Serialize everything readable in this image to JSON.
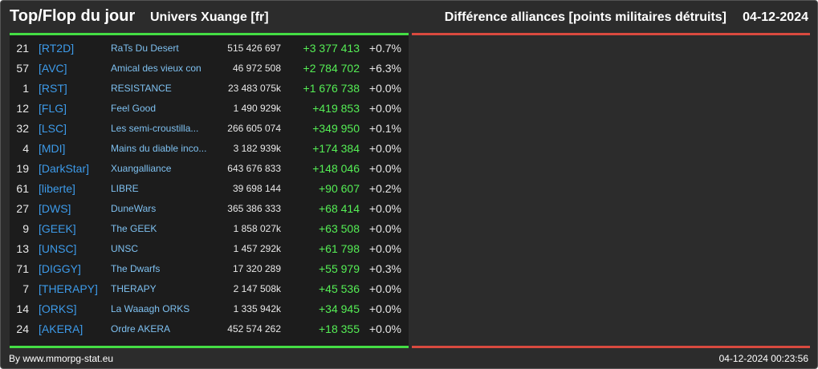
{
  "header": {
    "title": "Top/Flop du jour",
    "subtitle": "Univers Xuange [fr]",
    "right_title": "Différence alliances [points militaires détruits]",
    "date": "04-12-2024"
  },
  "colors": {
    "top_accent": "#44dd44",
    "flop_accent": "#d94a3f",
    "tag": "#3d9bea",
    "name": "#7ec0f0",
    "delta": "#55ee55",
    "panel_bg": "#1c1c1c",
    "frame_bg": "#2c2c2c"
  },
  "rows": [
    {
      "rank": "21",
      "tag": "[RT2D]",
      "name": "RaTs Du Desert",
      "points": "515 426 697",
      "delta": "+3 377 413",
      "pct": "+0.7%"
    },
    {
      "rank": "57",
      "tag": "[AVC]",
      "name": "Amical des vieux con",
      "points": "46 972 508",
      "delta": "+2 784 702",
      "pct": "+6.3%"
    },
    {
      "rank": "1",
      "tag": "[RST]",
      "name": "RESISTANCE",
      "points": "23 483 075k",
      "delta": "+1 676 738",
      "pct": "+0.0%"
    },
    {
      "rank": "12",
      "tag": "[FLG]",
      "name": "Feel Good",
      "points": "1 490 929k",
      "delta": "+419 853",
      "pct": "+0.0%"
    },
    {
      "rank": "32",
      "tag": "[LSC]",
      "name": "Les semi-croustilla...",
      "points": "266 605 074",
      "delta": "+349 950",
      "pct": "+0.1%"
    },
    {
      "rank": "4",
      "tag": "[MDI]",
      "name": "Mains du diable inco...",
      "points": "3 182 939k",
      "delta": "+174 384",
      "pct": "+0.0%"
    },
    {
      "rank": "19",
      "tag": "[DarkStar]",
      "name": "Xuangalliance",
      "points": "643 676 833",
      "delta": "+148 046",
      "pct": "+0.0%"
    },
    {
      "rank": "61",
      "tag": "[liberte]",
      "name": "LIBRE",
      "points": "39 698 144",
      "delta": "+90 607",
      "pct": "+0.2%"
    },
    {
      "rank": "27",
      "tag": "[DWS]",
      "name": "DuneWars",
      "points": "365 386 333",
      "delta": "+68 414",
      "pct": "+0.0%"
    },
    {
      "rank": "9",
      "tag": "[GEEK]",
      "name": "The GEEK",
      "points": "1 858 027k",
      "delta": "+63 508",
      "pct": "+0.0%"
    },
    {
      "rank": "13",
      "tag": "[UNSC]",
      "name": "UNSC",
      "points": "1 457 292k",
      "delta": "+61 798",
      "pct": "+0.0%"
    },
    {
      "rank": "71",
      "tag": "[DIGGY]",
      "name": "The Dwarfs",
      "points": "17 320 289",
      "delta": "+55 979",
      "pct": "+0.3%"
    },
    {
      "rank": "7",
      "tag": "[THERAPY]",
      "name": "THERAPY",
      "points": "2 147 508k",
      "delta": "+45 536",
      "pct": "+0.0%"
    },
    {
      "rank": "14",
      "tag": "[ORKS]",
      "name": "La Waaagh ORKS",
      "points": "1 335 942k",
      "delta": "+34 945",
      "pct": "+0.0%"
    },
    {
      "rank": "24",
      "tag": "[AKERA]",
      "name": "Ordre AKERA",
      "points": "452 574 262",
      "delta": "+18 355",
      "pct": "+0.0%"
    }
  ],
  "footer": {
    "credit": "By www.mmorpg-stat.eu",
    "timestamp": "04-12-2024 00:23:56"
  }
}
